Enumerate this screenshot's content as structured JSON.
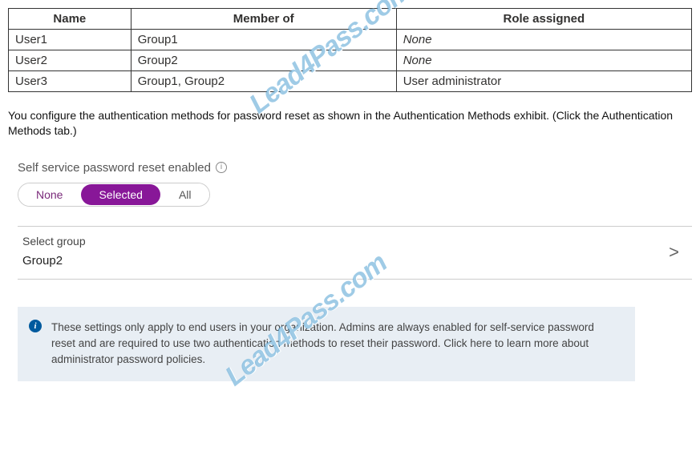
{
  "table": {
    "columns": [
      "Name",
      "Member of",
      "Role assigned"
    ],
    "rows": [
      {
        "name": "User1",
        "member_of": "Group1",
        "role": "None",
        "role_italic": true
      },
      {
        "name": "User2",
        "member_of": "Group2",
        "role": "None",
        "role_italic": true
      },
      {
        "name": "User3",
        "member_of": "Group1, Group2",
        "role": "User administrator",
        "role_italic": false
      }
    ],
    "border_color": "#333333",
    "header_bg": "#ffffff",
    "column_widths_pct": [
      33,
      34,
      33
    ]
  },
  "description": "You configure the authentication methods for password reset as shown in the Authentication Methods exhibit. (Click the Authentication Methods tab.)",
  "sspr": {
    "label": "Self service password reset enabled",
    "options": [
      "None",
      "Selected",
      "All"
    ],
    "selected_index": 1,
    "pill_bg": "#881798",
    "pill_text_color": "#ffffff",
    "unselected_text_color": "#555555",
    "first_option_color": "#7a2a7a",
    "border_color": "#cccccc"
  },
  "select_group": {
    "label": "Select group",
    "value": "Group2",
    "chevron": ">"
  },
  "info_box": {
    "text": "These settings only apply to end users in your organization. Admins are always enabled for self-service password reset and are required to use two authentication methods to reset their password. Click here to learn more about administrator password policies.",
    "bg_color": "#e8eef4",
    "icon_bg": "#005a9e",
    "icon_glyph": "i"
  },
  "watermark": {
    "text": "Lead4Pass.com",
    "color": "rgba(80,160,210,0.55)"
  },
  "colors": {
    "page_bg": "#ffffff",
    "text_primary": "#323130",
    "divider": "#cccccc"
  }
}
